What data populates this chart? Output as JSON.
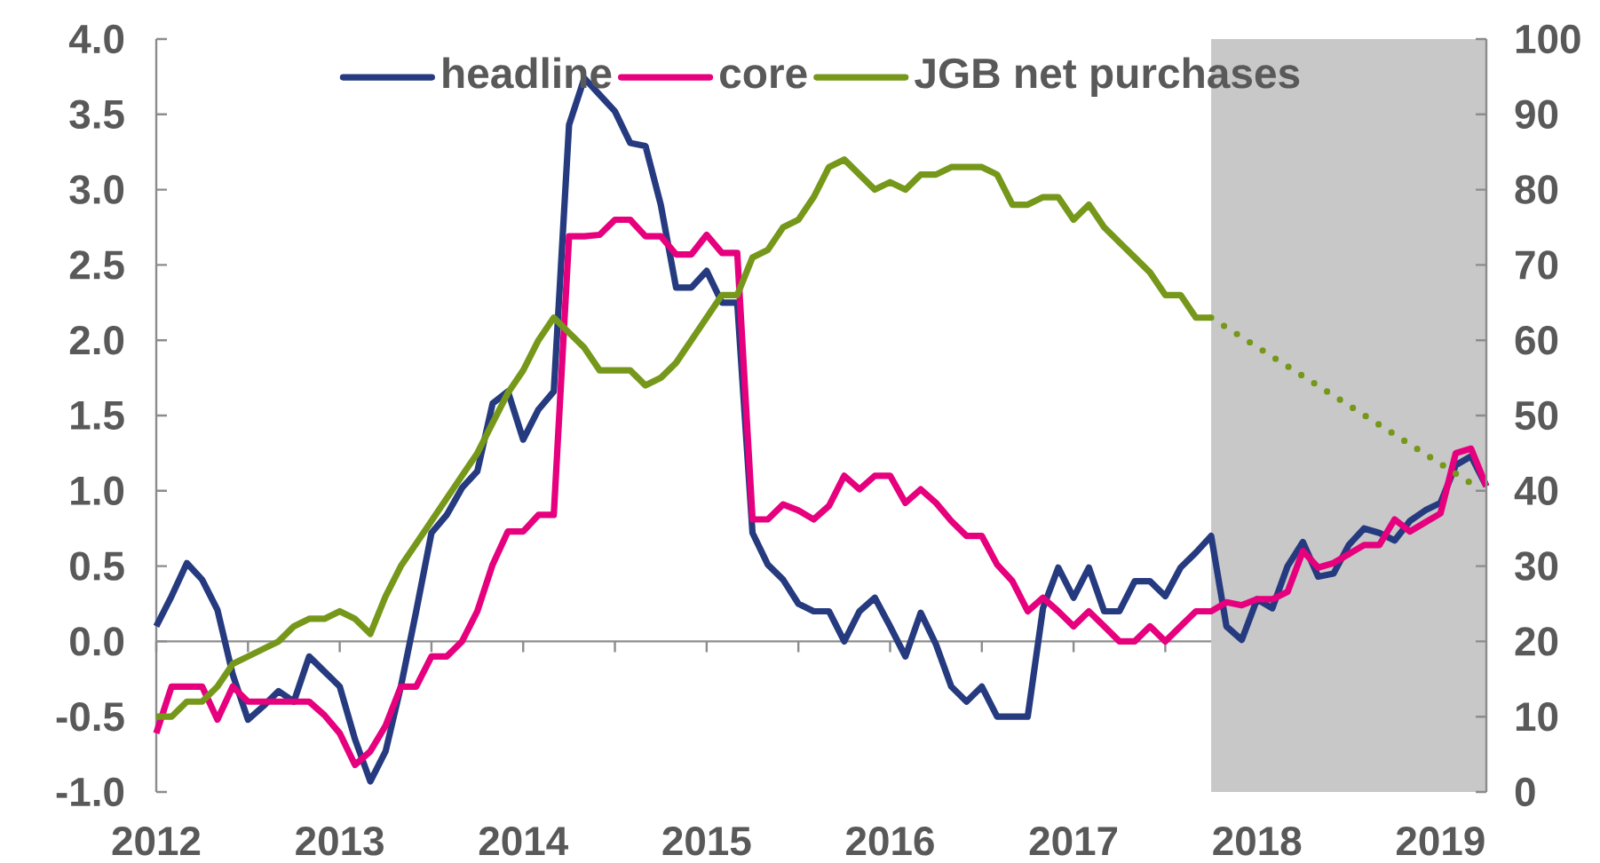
{
  "chart_data": {
    "type": "line",
    "x": [
      2012.0,
      2012.0833,
      2012.1667,
      2012.25,
      2012.3333,
      2012.4167,
      2012.5,
      2012.5833,
      2012.6667,
      2012.75,
      2012.8333,
      2012.9167,
      2013.0,
      2013.0833,
      2013.1667,
      2013.25,
      2013.3333,
      2013.4167,
      2013.5,
      2013.5833,
      2013.6667,
      2013.75,
      2013.8333,
      2013.9167,
      2014.0,
      2014.0833,
      2014.1667,
      2014.25,
      2014.3333,
      2014.4167,
      2014.5,
      2014.5833,
      2014.6667,
      2014.75,
      2014.8333,
      2014.9167,
      2015.0,
      2015.0833,
      2015.1667,
      2015.25,
      2015.3333,
      2015.4167,
      2015.5,
      2015.5833,
      2015.6667,
      2015.75,
      2015.8333,
      2015.9167,
      2016.0,
      2016.0833,
      2016.1667,
      2016.25,
      2016.3333,
      2016.4167,
      2016.5,
      2016.5833,
      2016.6667,
      2016.75,
      2016.8333,
      2016.9167,
      2017.0,
      2017.0833,
      2017.1667,
      2017.25,
      2017.3333,
      2017.4167,
      2017.5,
      2017.5833,
      2017.6667,
      2017.75,
      2017.8333,
      2017.9167,
      2018.0,
      2018.0833,
      2018.1667,
      2018.25,
      2018.3333,
      2018.4167,
      2018.5,
      2018.5833,
      2018.6667,
      2018.75,
      2018.8333,
      2018.9167,
      2019.0,
      2019.0833,
      2019.1667,
      2019.25
    ],
    "series": [
      {
        "name": "headline",
        "color": "#253a7f",
        "line_style": "solid",
        "values": [
          0.1,
          0.3,
          0.52,
          0.41,
          0.21,
          -0.22,
          -0.52,
          -0.43,
          -0.33,
          -0.4,
          -0.1,
          -0.2,
          -0.3,
          -0.65,
          -0.93,
          -0.73,
          -0.3,
          0.2,
          0.72,
          0.84,
          1.02,
          1.13,
          1.58,
          1.66,
          1.34,
          1.54,
          1.66,
          3.43,
          3.74,
          3.63,
          3.52,
          3.31,
          3.29,
          2.9,
          2.35,
          2.35,
          2.46,
          2.25,
          2.25,
          0.72,
          0.51,
          0.41,
          0.25,
          0.2,
          0.2,
          0.0,
          0.2,
          0.29,
          0.1,
          -0.1,
          0.19,
          -0.02,
          -0.3,
          -0.4,
          -0.3,
          -0.5,
          -0.5,
          -0.5,
          0.22,
          0.49,
          0.29,
          0.49,
          0.2,
          0.2,
          0.4,
          0.4,
          0.3,
          0.49,
          0.59,
          0.7,
          0.1,
          0.01,
          0.28,
          0.22,
          0.5,
          0.66,
          0.43,
          0.45,
          0.64,
          0.75,
          0.72,
          0.67,
          0.8,
          0.87,
          0.92,
          1.17,
          1.23,
          1.03
        ]
      },
      {
        "name": "core",
        "color": "#e6007e",
        "line_style": "solid",
        "values": [
          -0.61,
          -0.3,
          -0.3,
          -0.3,
          -0.52,
          -0.3,
          -0.4,
          -0.4,
          -0.4,
          -0.4,
          -0.4,
          -0.49,
          -0.61,
          -0.82,
          -0.73,
          -0.56,
          -0.3,
          -0.3,
          -0.1,
          -0.1,
          0.0,
          0.2,
          0.51,
          0.73,
          0.73,
          0.84,
          0.84,
          2.69,
          2.69,
          2.7,
          2.8,
          2.8,
          2.69,
          2.69,
          2.57,
          2.57,
          2.7,
          2.58,
          2.58,
          0.81,
          0.81,
          0.91,
          0.87,
          0.81,
          0.9,
          1.1,
          1.01,
          1.1,
          1.1,
          0.92,
          1.01,
          0.92,
          0.8,
          0.7,
          0.7,
          0.51,
          0.4,
          0.2,
          0.29,
          0.2,
          0.1,
          0.2,
          0.1,
          0.0,
          0.0,
          0.1,
          0.0,
          0.1,
          0.2,
          0.2,
          0.26,
          0.24,
          0.28,
          0.28,
          0.33,
          0.6,
          0.49,
          0.52,
          0.58,
          0.64,
          0.64,
          0.81,
          0.73,
          0.79,
          0.85,
          1.25,
          1.28,
          1.03
        ]
      },
      {
        "name": "JGB net purchases",
        "color": "#76981a",
        "line_style": "solid",
        "axis": "y2",
        "values": [
          10,
          10,
          12,
          12,
          14,
          17,
          18,
          19,
          20,
          22,
          23,
          23,
          24,
          23,
          21,
          26,
          30,
          33,
          36,
          39,
          42,
          45,
          49,
          53,
          56,
          60,
          63,
          61,
          59,
          56,
          56,
          56,
          54,
          55,
          57,
          60,
          63,
          66,
          66,
          71,
          72,
          75,
          76,
          79,
          83,
          84,
          82,
          80,
          81,
          80,
          82,
          82,
          83,
          83,
          83,
          82,
          78,
          78,
          79,
          79,
          76,
          78,
          75,
          73,
          71,
          69,
          66,
          66,
          63,
          63,
          null,
          null,
          null,
          null,
          null,
          null,
          null,
          null,
          null,
          null,
          null,
          null,
          null,
          null,
          null,
          null,
          null,
          null
        ]
      },
      {
        "color": "#76981a",
        "line_style": "dotted",
        "axis": "y2",
        "x": [
          2017.75,
          2019.1667
        ],
        "values": [
          63,
          41
        ]
      }
    ],
    "xlim": [
      2012,
      2019.25
    ],
    "xticks": [
      2012,
      {
        "value": 2012.5,
        "label": null
      },
      2013,
      {
        "value": 2013.5,
        "label": null
      },
      2014,
      {
        "value": 2014.5,
        "label": null
      },
      2015,
      {
        "value": 2015.5,
        "label": null
      },
      2016,
      {
        "value": 2016.5,
        "label": null
      },
      2017,
      {
        "value": 2017.5,
        "label": null
      },
      2018,
      {
        "value": 2018.5,
        "label": null
      },
      2019
    ],
    "ylim": [
      -1,
      4
    ],
    "yticks": [
      {
        "value": -1,
        "label": "-1.0"
      },
      -0.5,
      {
        "value": 0,
        "label": "0.0"
      },
      0.5,
      {
        "value": 1,
        "label": "1.0"
      },
      1.5,
      {
        "value": 2,
        "label": "2.0"
      },
      2.5,
      {
        "value": 3,
        "label": "3.0"
      },
      3.5,
      {
        "value": 4,
        "label": "4.0"
      }
    ],
    "y2lim": [
      0,
      100
    ],
    "y2ticks": [
      0,
      10,
      20,
      30,
      40,
      50,
      60,
      70,
      80,
      90,
      100
    ],
    "bands": [
      {
        "axis": "x",
        "from": 2017.75,
        "to": 2019.25,
        "color": "#c8c8c8"
      }
    ],
    "legend": "top"
  }
}
